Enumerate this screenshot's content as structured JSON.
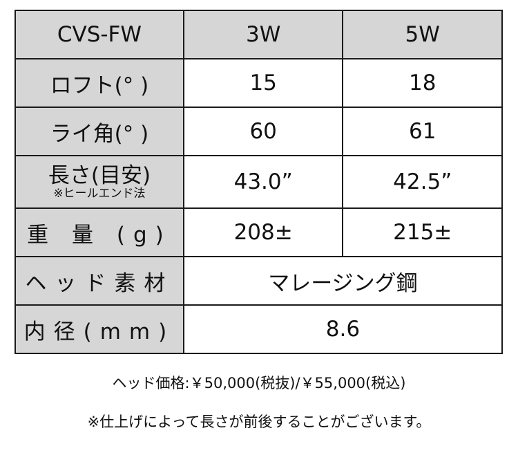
{
  "header": {
    "model": "CVS-FW",
    "col1": "3W",
    "col2": "5W"
  },
  "rows": [
    {
      "label": "ロフト(° )",
      "v1": "15",
      "v2": "18"
    },
    {
      "label": "ライ角(° )",
      "v1": "60",
      "v2": "61"
    },
    {
      "label": "長さ(目安)",
      "sublabel": "※ヒールエンド法",
      "v1": "43.0”",
      "v2": "42.5”"
    },
    {
      "label": "重 量 (g)",
      "v1": "208±",
      "v2": "215±"
    },
    {
      "label": "ヘッド素材",
      "value": "マレージング鋼"
    },
    {
      "label": "内径(mm)",
      "value": "8.6"
    }
  ],
  "notes": {
    "price": "ヘッド価格:￥50,000(税抜)/￥55,000(税込)",
    "disclaimer": "※仕上げによって長さが前後することがございます。"
  }
}
